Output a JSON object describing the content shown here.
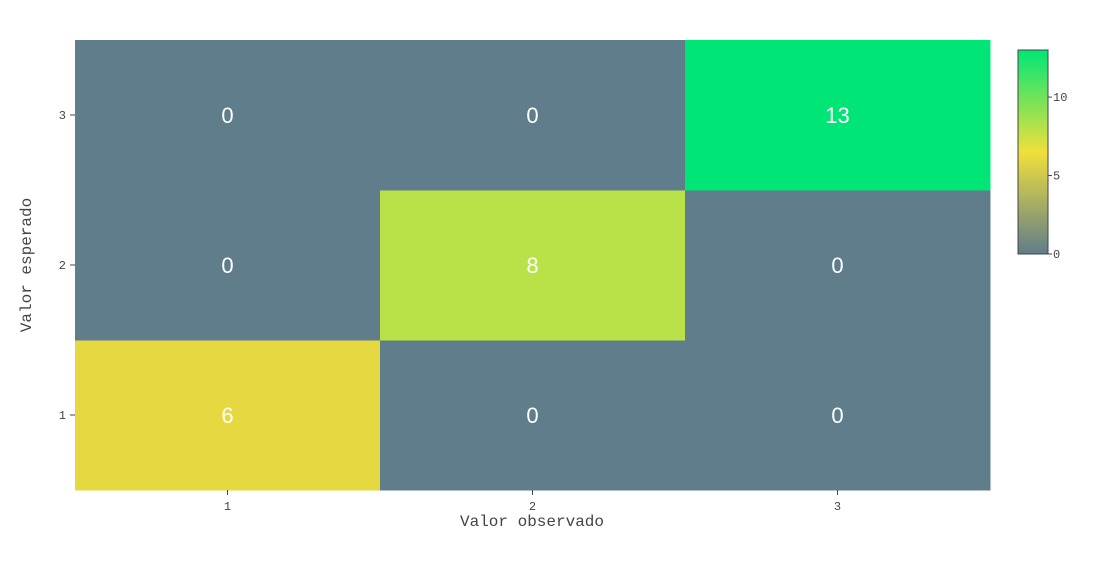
{
  "chart_data": {
    "type": "heatmap",
    "x_categories": [
      "1",
      "2",
      "3"
    ],
    "y_categories": [
      "1",
      "2",
      "3"
    ],
    "z": [
      [
        6,
        0,
        0
      ],
      [
        0,
        8,
        0
      ],
      [
        0,
        0,
        13
      ]
    ],
    "xlabel": "Valor observado",
    "ylabel": "Valor esperado",
    "colorscale": [
      [
        0.0,
        "#607d8b"
      ],
      [
        0.5,
        "#f0e03a"
      ],
      [
        1.0,
        "#00e676"
      ]
    ],
    "zmin": 0,
    "zmax": 13,
    "colorbar_ticks": [
      "0",
      "5",
      "10"
    ],
    "cell_text_color": "#ffffff"
  }
}
